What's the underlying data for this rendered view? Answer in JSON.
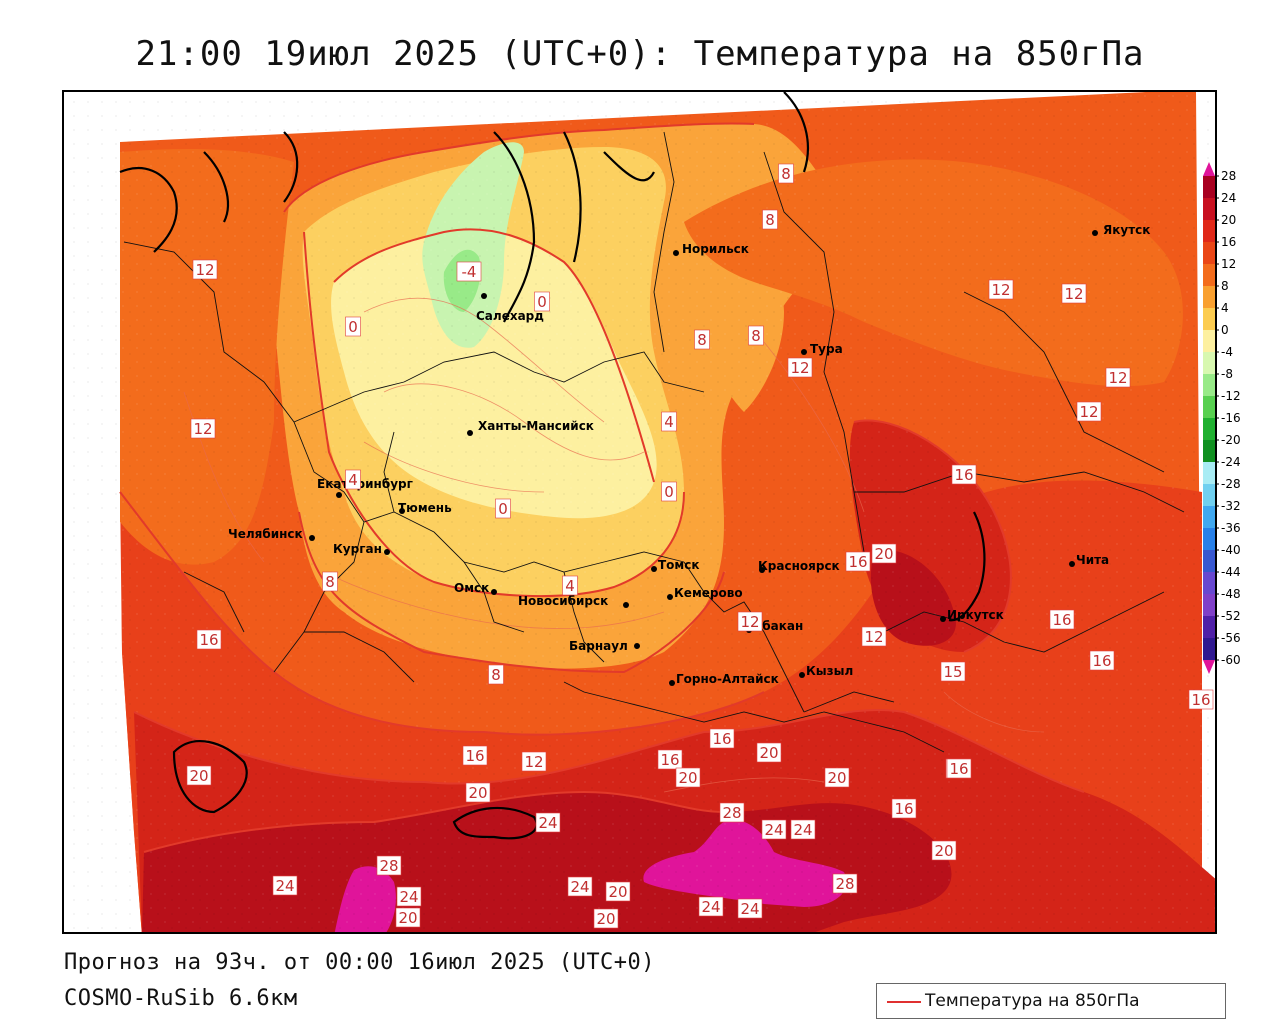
{
  "title": "21:00 19июл 2025 (UTC+0): Температура на 850гПа",
  "forecast_line": "Прогноз на 93ч. от 00:00 16июл 2025 (UTC+0)",
  "model_line": "COSMO-RuSib 6.6км",
  "legend": {
    "label": "Температура на 850гПа",
    "color": "#e03030"
  },
  "colorbar": {
    "ticks": [
      "28",
      "24",
      "20",
      "16",
      "12",
      "8",
      "4",
      "0",
      "-4",
      "-8",
      "-12",
      "-16",
      "-20",
      "-24",
      "-28",
      "-32",
      "-36",
      "-40",
      "-44",
      "-48",
      "-52",
      "-56",
      "-60"
    ],
    "colors": [
      "#a80020",
      "#c81020",
      "#e02818",
      "#ea4616",
      "#f36c1c",
      "#f9a030",
      "#fccc50",
      "#fdf0a0",
      "#d8f8b0",
      "#98ea88",
      "#58d050",
      "#20b030",
      "#109020",
      "#a8ecf4",
      "#70d0f0",
      "#40a8f0",
      "#2880e8",
      "#3858d0",
      "#6848d0",
      "#8040c8",
      "#5020a8",
      "#301890"
    ]
  },
  "cities": [
    {
      "name": "Якутск"
    },
    {
      "name": "Норильск"
    },
    {
      "name": "Салехард"
    },
    {
      "name": "Тура"
    },
    {
      "name": "Ханты-Мансийск"
    },
    {
      "name": "Екатеринбург"
    },
    {
      "name": "Тюмень"
    },
    {
      "name": "Челябинск"
    },
    {
      "name": "Курган"
    },
    {
      "name": "Омск"
    },
    {
      "name": "Новосибирск"
    },
    {
      "name": "Томск"
    },
    {
      "name": "Кемерово"
    },
    {
      "name": "Красноярск"
    },
    {
      "name": "Абакан"
    },
    {
      "name": "Барнаул"
    },
    {
      "name": "Горно-Алтайск"
    },
    {
      "name": "Кызыл"
    },
    {
      "name": "Иркутск"
    },
    {
      "name": "Чита"
    }
  ],
  "contour_labels": [
    "8",
    "8",
    "12",
    "12",
    "12",
    "12",
    "12",
    "12",
    "-4",
    "0",
    "0",
    "8",
    "8",
    "12",
    "4",
    "0",
    "0",
    "4",
    "4",
    "8",
    "8",
    "16",
    "16",
    "20",
    "16",
    "16",
    "16",
    "16",
    "12",
    "15",
    "16",
    "12",
    "12",
    "16",
    "16",
    "16",
    "20",
    "20",
    "20",
    "20",
    "20",
    "24",
    "24",
    "24",
    "24",
    "24",
    "28",
    "28",
    "28",
    "24",
    "24",
    "24",
    "20",
    "20",
    "20",
    "20",
    "16",
    "12"
  ]
}
